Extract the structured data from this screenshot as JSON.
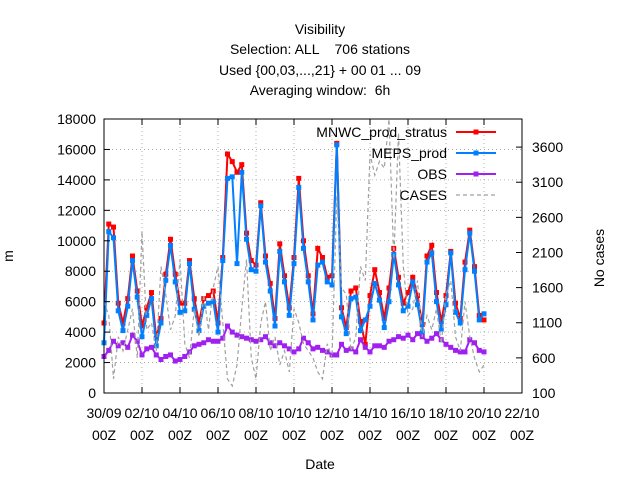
{
  "titles": [
    "Visibility",
    "Selection: ALL    706 stations",
    "Used {00,03,...,21} + 00 01 ... 09",
    "Averaging window:  6h"
  ],
  "chart_data": {
    "type": "line",
    "xlabel": "Date",
    "ylabel": "m",
    "y2label": "No cases",
    "ylim": [
      0,
      18000
    ],
    "y2lim": [
      100,
      4000
    ],
    "xlim": [
      0,
      22
    ],
    "yticks": [
      0,
      2000,
      4000,
      6000,
      8000,
      10000,
      12000,
      14000,
      16000,
      18000
    ],
    "y2ticks": [
      100,
      600,
      1100,
      1600,
      2100,
      2600,
      3100,
      3600
    ],
    "xticks": [
      {
        "x": 0,
        "top": "30/09",
        "bottom": "00Z"
      },
      {
        "x": 2,
        "top": "02/10",
        "bottom": "00Z"
      },
      {
        "x": 4,
        "top": "04/10",
        "bottom": "00Z"
      },
      {
        "x": 6,
        "top": "06/10",
        "bottom": "00Z"
      },
      {
        "x": 8,
        "top": "08/10",
        "bottom": "00Z"
      },
      {
        "x": 10,
        "top": "10/10",
        "bottom": "00Z"
      },
      {
        "x": 12,
        "top": "12/10",
        "bottom": "00Z"
      },
      {
        "x": 14,
        "top": "14/10",
        "bottom": "00Z"
      },
      {
        "x": 16,
        "top": "16/10",
        "bottom": "00Z"
      },
      {
        "x": 18,
        "top": "18/10",
        "bottom": "00Z"
      },
      {
        "x": 20,
        "top": "20/10",
        "bottom": "00Z"
      },
      {
        "x": 22,
        "top": "22/10",
        "bottom": "00Z"
      }
    ],
    "grid": true,
    "legend_position": "top-right",
    "series": [
      {
        "name": "MNWC_prod_stratus",
        "color": "#ff0000",
        "marker": "square",
        "axis": "y1",
        "x": [
          0,
          0.25,
          0.5,
          0.75,
          1.0,
          1.25,
          1.5,
          1.75,
          2.0,
          2.25,
          2.5,
          2.75,
          3.0,
          3.25,
          3.5,
          3.75,
          4.0,
          4.25,
          4.5,
          4.75,
          5.0,
          5.25,
          5.5,
          5.75,
          6.0,
          6.25,
          6.5,
          6.75,
          7.0,
          7.25,
          7.5,
          7.75,
          8.0,
          8.25,
          8.5,
          8.75,
          9.0,
          9.25,
          9.5,
          9.75,
          10.0,
          10.25,
          10.5,
          10.75,
          11.0,
          11.25,
          11.5,
          11.75,
          12.0,
          12.25,
          12.5,
          12.75,
          13.0,
          13.25,
          13.5,
          13.75,
          14.0,
          14.25,
          14.5,
          14.75,
          15.0,
          15.25,
          15.5,
          15.75,
          16.0,
          16.25,
          16.5,
          16.75,
          17.0,
          17.25,
          17.5,
          17.75,
          18.0,
          18.25,
          18.5,
          18.75,
          19.0,
          19.25,
          19.5,
          19.75,
          20.0
        ],
        "y": [
          4600,
          11100,
          10900,
          5900,
          4600,
          6200,
          9000,
          6700,
          4400,
          5600,
          6600,
          3600,
          4900,
          7800,
          10100,
          7800,
          5900,
          5900,
          8700,
          6200,
          4600,
          6200,
          6400,
          6700,
          4600,
          8900,
          15700,
          15200,
          14500,
          15000,
          10500,
          8700,
          8400,
          12500,
          9000,
          7200,
          4900,
          9800,
          7700,
          5600,
          8900,
          14100,
          10000,
          7700,
          5200,
          9500,
          8900,
          7600,
          7700,
          16400,
          5600,
          4300,
          6700,
          6900,
          4700,
          3200,
          6400,
          8100,
          6600,
          4900,
          6900,
          9500,
          7600,
          5900,
          6600,
          7600,
          6400,
          4500,
          9000,
          9700,
          6600,
          4700,
          6400,
          9300,
          5900,
          4900,
          8600,
          10700,
          8300,
          5100,
          4800
        ],
        "x_note": "days since 30/09 00Z"
      },
      {
        "name": "MEPS_prod",
        "color": "#0080ff",
        "marker": "square",
        "axis": "y1",
        "x": [
          0,
          0.25,
          0.5,
          0.75,
          1.0,
          1.25,
          1.5,
          1.75,
          2.0,
          2.25,
          2.5,
          2.75,
          3.0,
          3.25,
          3.5,
          3.75,
          4.0,
          4.25,
          4.5,
          4.75,
          5.0,
          5.25,
          5.5,
          5.75,
          6.0,
          6.25,
          6.5,
          6.75,
          7.0,
          7.25,
          7.5,
          7.75,
          8.0,
          8.25,
          8.5,
          8.75,
          9.0,
          9.25,
          9.5,
          9.75,
          10.0,
          10.25,
          10.5,
          10.75,
          11.0,
          11.25,
          11.5,
          11.75,
          12.0,
          12.25,
          12.5,
          12.75,
          13.0,
          13.25,
          13.5,
          13.75,
          14.0,
          14.25,
          14.5,
          14.75,
          15.0,
          15.25,
          15.5,
          15.75,
          16.0,
          16.25,
          16.5,
          16.75,
          17.0,
          17.25,
          17.5,
          17.75,
          18.0,
          18.25,
          18.5,
          18.75,
          19.0,
          19.25,
          19.5,
          19.75,
          20.0
        ],
        "y": [
          3300,
          10600,
          10200,
          5400,
          4100,
          5700,
          8700,
          6300,
          3700,
          5100,
          6200,
          3100,
          4600,
          7400,
          9700,
          7300,
          5300,
          5400,
          8500,
          5500,
          4100,
          5700,
          5900,
          6000,
          4000,
          8700,
          14100,
          14200,
          8500,
          14500,
          10100,
          8100,
          8000,
          12300,
          8600,
          6700,
          4400,
          9300,
          7300,
          5100,
          8500,
          13500,
          9500,
          7300,
          4800,
          8400,
          8600,
          7300,
          7100,
          16300,
          5000,
          3900,
          6200,
          6300,
          4100,
          4800,
          5700,
          7200,
          6100,
          4300,
          6000,
          9100,
          7100,
          5400,
          5700,
          7300,
          5800,
          4000,
          8600,
          9200,
          6000,
          4200,
          5800,
          9200,
          5300,
          4600,
          8100,
          10500,
          8000,
          4800,
          5200
        ]
      },
      {
        "name": "OBS",
        "color": "#a020f0",
        "marker": "square",
        "axis": "y1",
        "x": [
          0,
          0.25,
          0.5,
          0.75,
          1.0,
          1.25,
          1.5,
          1.75,
          2.0,
          2.25,
          2.5,
          2.75,
          3.0,
          3.25,
          3.5,
          3.75,
          4.0,
          4.25,
          4.5,
          4.75,
          5.0,
          5.25,
          5.5,
          5.75,
          6.0,
          6.25,
          6.5,
          6.75,
          7.0,
          7.25,
          7.5,
          7.75,
          8.0,
          8.25,
          8.5,
          8.75,
          9.0,
          9.25,
          9.5,
          9.75,
          10.0,
          10.25,
          10.5,
          10.75,
          11.0,
          11.25,
          11.5,
          11.75,
          12.0,
          12.25,
          12.5,
          12.75,
          13.0,
          13.25,
          13.5,
          13.75,
          14.0,
          14.25,
          14.5,
          14.75,
          15.0,
          15.25,
          15.5,
          15.75,
          16.0,
          16.25,
          16.5,
          16.75,
          17.0,
          17.25,
          17.5,
          17.75,
          18.0,
          18.25,
          18.5,
          18.75,
          19.0,
          19.25,
          19.5,
          19.75,
          20.0
        ],
        "y": [
          2400,
          2800,
          3400,
          3100,
          3300,
          3000,
          3800,
          3400,
          2500,
          2900,
          3000,
          2500,
          2200,
          2400,
          2500,
          2100,
          2200,
          2400,
          2700,
          3100,
          3200,
          3300,
          3500,
          3400,
          3400,
          3600,
          4400,
          4000,
          3800,
          3700,
          3600,
          3500,
          3400,
          3500,
          3700,
          3300,
          3100,
          3300,
          3100,
          2900,
          2700,
          2900,
          3600,
          3300,
          2900,
          3000,
          2800,
          2700,
          2500,
          2500,
          3200,
          2800,
          2900,
          2700,
          3500,
          3000,
          2700,
          3100,
          3100,
          3000,
          3400,
          3500,
          3700,
          3600,
          3800,
          3500,
          3900,
          3700,
          3400,
          3600,
          3900,
          3500,
          3200,
          3000,
          2800,
          2700,
          2700,
          3500,
          3300,
          2800,
          2700
        ]
      },
      {
        "name": "CASES",
        "color": "#a0a0a0",
        "marker": "none",
        "dashed": true,
        "axis": "y2",
        "x": [
          0,
          0.25,
          0.5,
          0.75,
          1.0,
          1.25,
          1.5,
          1.75,
          2.0,
          2.25,
          2.5,
          2.75,
          3.0,
          3.25,
          3.5,
          3.75,
          4.0,
          4.25,
          4.5,
          4.75,
          5.0,
          5.25,
          5.5,
          5.75,
          6.0,
          6.25,
          6.5,
          6.75,
          7.0,
          7.25,
          7.5,
          7.75,
          8.0,
          8.25,
          8.5,
          8.75,
          9.0,
          9.25,
          9.5,
          9.75,
          10.0,
          10.25,
          10.5,
          10.75,
          11.0,
          11.25,
          11.5,
          11.75,
          12.0,
          12.25,
          12.5,
          12.75,
          13.0,
          13.25,
          13.5,
          13.75,
          14.0,
          14.25,
          14.5,
          14.75,
          15.0,
          15.25,
          15.5,
          15.75,
          16.0,
          16.25,
          16.5,
          16.75,
          17.0,
          17.25,
          17.5,
          17.75,
          18.0,
          18.25,
          18.5,
          18.75,
          19.0,
          19.25,
          19.5,
          19.75,
          20.0
        ],
        "y": [
          1400,
          1200,
          300,
          900,
          700,
          1000,
          1300,
          600,
          2400,
          1000,
          1100,
          700,
          1900,
          1500,
          1000,
          1200,
          2000,
          800,
          600,
          1300,
          900,
          1500,
          1000,
          1600,
          1900,
          1100,
          300,
          200,
          500,
          1300,
          2000,
          600,
          300,
          1100,
          1400,
          700,
          900,
          500,
          700,
          400,
          1300,
          1100,
          800,
          700,
          600,
          400,
          300,
          800,
          600,
          2900,
          1600,
          1500,
          700,
          900,
          1900,
          1700,
          3500,
          3200,
          3400,
          3300,
          4000,
          2000,
          3800,
          1900,
          1200,
          1300,
          1700,
          900,
          1200,
          1000,
          1300,
          800,
          1500,
          1700,
          900,
          700,
          1400,
          900,
          600,
          400,
          500
        ]
      }
    ]
  }
}
